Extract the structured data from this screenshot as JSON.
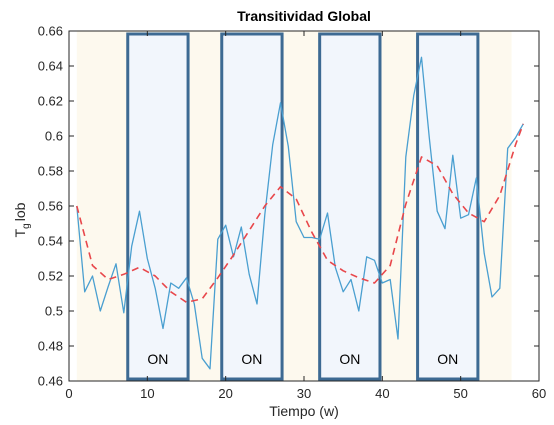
{
  "chart_data": {
    "type": "line",
    "title": "Transitividad Global",
    "xlabel": "Tiempo (w)",
    "ylabel_main": "T",
    "ylabel_sub": "g",
    "ylabel_rest": "lob",
    "xlim": [
      0,
      60
    ],
    "ylim": [
      0.46,
      0.66
    ],
    "x_ticks": [
      0,
      10,
      20,
      30,
      40,
      50,
      60
    ],
    "y_ticks": [
      0.46,
      0.48,
      0.5,
      0.52,
      0.54,
      0.56,
      0.58,
      0.6,
      0.62,
      0.64,
      0.66
    ],
    "y_tick_labels": [
      "0.46",
      "0.48",
      "0.5",
      "0.52",
      "0.54",
      "0.56",
      "0.58",
      "0.6",
      "0.62",
      "0.64",
      "0.66"
    ],
    "grid": false,
    "background_band": {
      "x_range": [
        1,
        56.5
      ],
      "color": "#fdf9ee"
    },
    "series": [
      {
        "role": "raw",
        "color": "#4a9fd0",
        "style": "solid",
        "x": [
          1,
          2,
          3,
          4,
          5,
          6,
          7,
          8,
          9,
          10,
          11,
          12,
          13,
          14,
          15,
          16,
          17,
          18,
          19,
          20,
          21,
          22,
          23,
          24,
          25,
          26,
          27,
          28,
          29,
          30,
          31,
          32,
          33,
          34,
          35,
          36,
          37,
          38,
          39,
          40,
          41,
          42,
          43,
          44,
          45,
          46,
          47,
          48,
          49,
          50,
          51,
          52,
          53,
          54,
          55,
          56,
          57,
          58
        ],
        "y": [
          0.56,
          0.511,
          0.52,
          0.5,
          0.514,
          0.527,
          0.499,
          0.537,
          0.557,
          0.53,
          0.513,
          0.49,
          0.516,
          0.513,
          0.519,
          0.504,
          0.473,
          0.467,
          0.541,
          0.549,
          0.531,
          0.548,
          0.521,
          0.504,
          0.555,
          0.595,
          0.619,
          0.594,
          0.551,
          0.542,
          0.542,
          0.541,
          0.556,
          0.525,
          0.511,
          0.518,
          0.5,
          0.531,
          0.529,
          0.516,
          0.518,
          0.484,
          0.588,
          0.623,
          0.645,
          0.599,
          0.557,
          0.547,
          0.589,
          0.553,
          0.555,
          0.576,
          0.533,
          0.508,
          0.513,
          0.593,
          0.599,
          0.607
        ]
      },
      {
        "role": "trend",
        "color": "#e8474b",
        "style": "dashed",
        "x": [
          1,
          3,
          5,
          7,
          9,
          11,
          13,
          15,
          17,
          19,
          21,
          23,
          25,
          27,
          29,
          31,
          33,
          35,
          37,
          39,
          41,
          43,
          45,
          47,
          49,
          51,
          53,
          55,
          57,
          58
        ],
        "y": [
          0.56,
          0.526,
          0.518,
          0.521,
          0.525,
          0.52,
          0.511,
          0.505,
          0.507,
          0.519,
          0.532,
          0.546,
          0.56,
          0.571,
          0.564,
          0.545,
          0.529,
          0.523,
          0.519,
          0.516,
          0.526,
          0.561,
          0.588,
          0.583,
          0.567,
          0.556,
          0.551,
          0.566,
          0.595,
          0.607
        ]
      }
    ],
    "on_boxes": [
      {
        "label": "ON",
        "x_range": [
          7.5,
          15.2
        ]
      },
      {
        "label": "ON",
        "x_range": [
          19.5,
          27.2
        ]
      },
      {
        "label": "ON",
        "x_range": [
          32,
          39.7
        ]
      },
      {
        "label": "ON",
        "x_range": [
          44.5,
          52.2
        ]
      }
    ],
    "colors": {
      "box_edge": "#3d6a93",
      "box_fill": "#f2f6fc",
      "axes": "#262626"
    }
  }
}
